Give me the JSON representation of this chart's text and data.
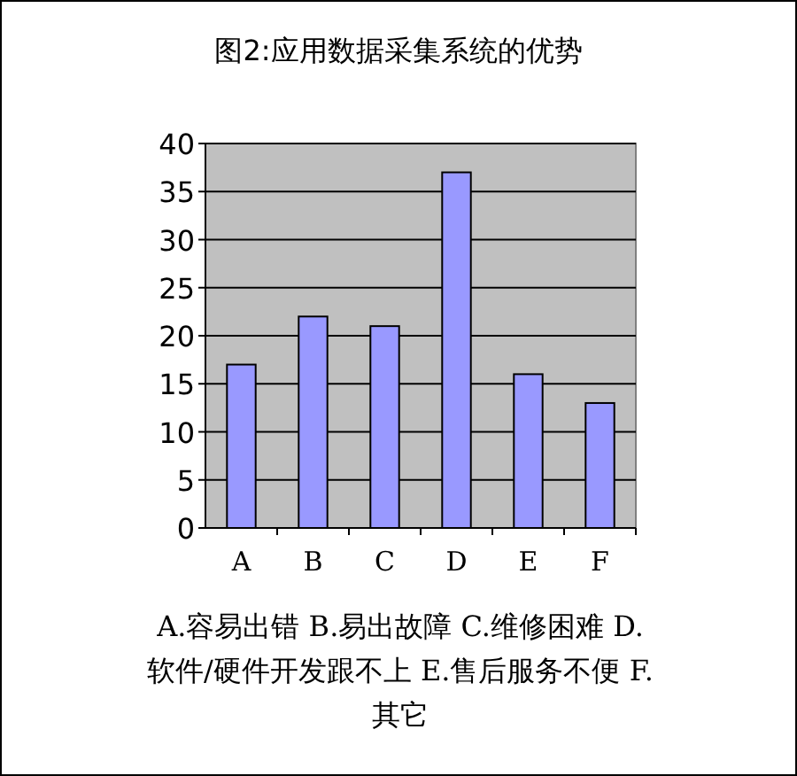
{
  "chart_data": {
    "type": "bar",
    "title": "图2:应用数据采集系统的优势",
    "categories": [
      "A",
      "B",
      "C",
      "D",
      "E",
      "F"
    ],
    "values": [
      17,
      22,
      21,
      37,
      16,
      13
    ],
    "color": "#9999ff",
    "ylim": [
      0,
      40
    ],
    "yticks": [
      0,
      5,
      10,
      15,
      20,
      25,
      30,
      35,
      40
    ],
    "grid": "y",
    "annotations": [
      "A.容易出错 B.易出故障 C.维修困难 D.软件/硬件开发跟不上 E.售后服务不便 F.其它"
    ]
  }
}
